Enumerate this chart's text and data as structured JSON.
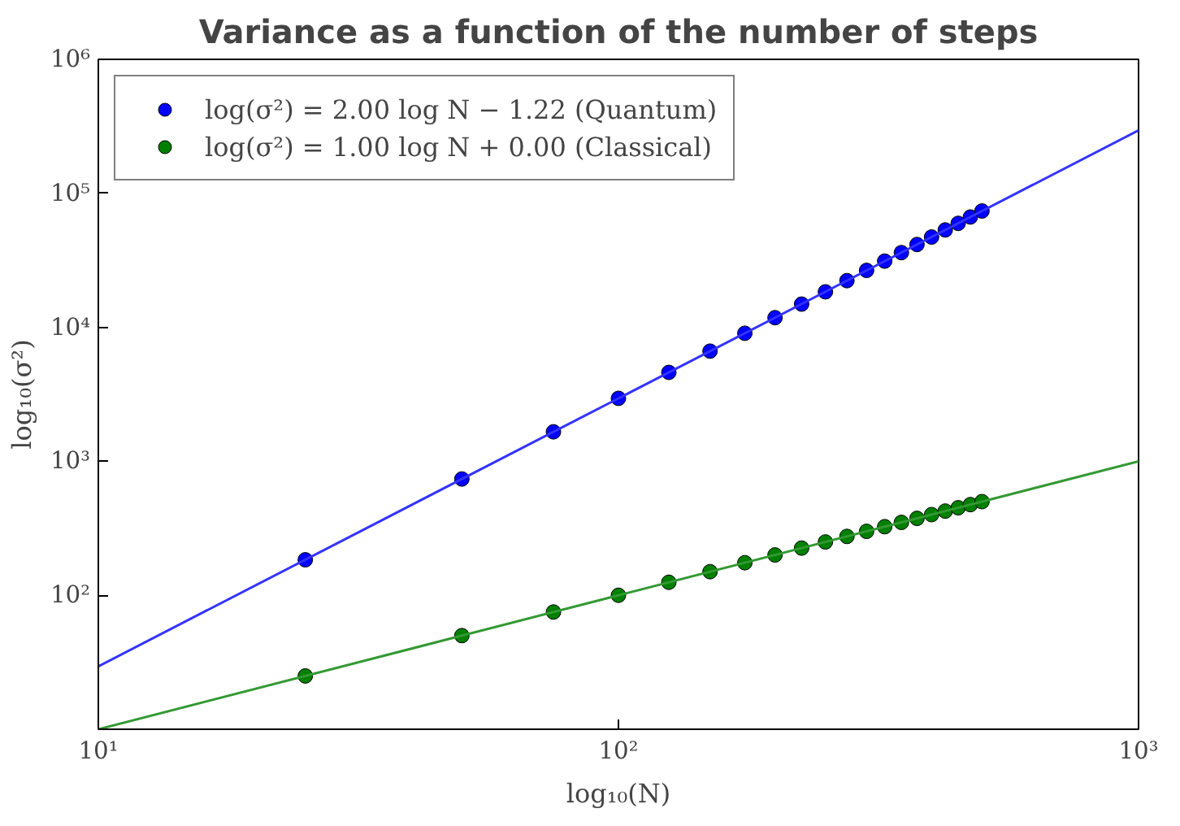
{
  "chart_data": {
    "type": "scatter",
    "title": "Variance as a function of the number of steps",
    "xlabel": "log₁₀(N)",
    "ylabel": "log₁₀(σ²)",
    "log": "xy",
    "grid": false,
    "legend": "top left",
    "xlim": [
      10,
      1000
    ],
    "ylim": [
      10,
      1000000
    ],
    "xticks": [
      {
        "value": 10,
        "label": "10¹"
      },
      {
        "value": 100,
        "label": "10²"
      },
      {
        "value": 1000,
        "label": "10³"
      }
    ],
    "yticks": [
      {
        "value": 100,
        "label": "10²"
      },
      {
        "value": 1000,
        "label": "10³"
      },
      {
        "value": 10000,
        "label": "10⁴"
      },
      {
        "value": 100000,
        "label": "10⁵"
      },
      {
        "value": 1000000,
        "label": "10⁶"
      }
    ],
    "x": [
      25,
      50,
      75,
      100,
      125,
      150,
      175,
      200,
      225,
      250,
      275,
      300,
      325,
      350,
      375,
      400,
      425,
      450,
      475,
      500
    ],
    "series": [
      {
        "name": "log(σ²) = 2.00 log N − 1.22 (Quantum)",
        "color": "#0000ff",
        "marker": "circle",
        "values": [
          184,
          738,
          1660,
          2950,
          4610,
          6640,
          9030,
          11800,
          14900,
          18400,
          22300,
          26600,
          31200,
          36100,
          41500,
          47200,
          53300,
          59700,
          66600,
          73800
        ]
      },
      {
        "name": "log(σ²) = 1.00 log N + 0.00 (Classical)",
        "color": "#007f00",
        "marker": "circle",
        "values": [
          25,
          50,
          75,
          100,
          125,
          150,
          175,
          200,
          225,
          250,
          275,
          300,
          325,
          350,
          375,
          400,
          425,
          450,
          475,
          500
        ]
      },
      {
        "type": "line",
        "color": "#3333ff",
        "x": [
          10,
          100,
          1000
        ],
        "values": [
          29.5,
          2950,
          295000
        ]
      },
      {
        "type": "line",
        "color": "#339933",
        "x": [
          10,
          100,
          1000
        ],
        "values": [
          10,
          100,
          1000
        ]
      }
    ]
  }
}
